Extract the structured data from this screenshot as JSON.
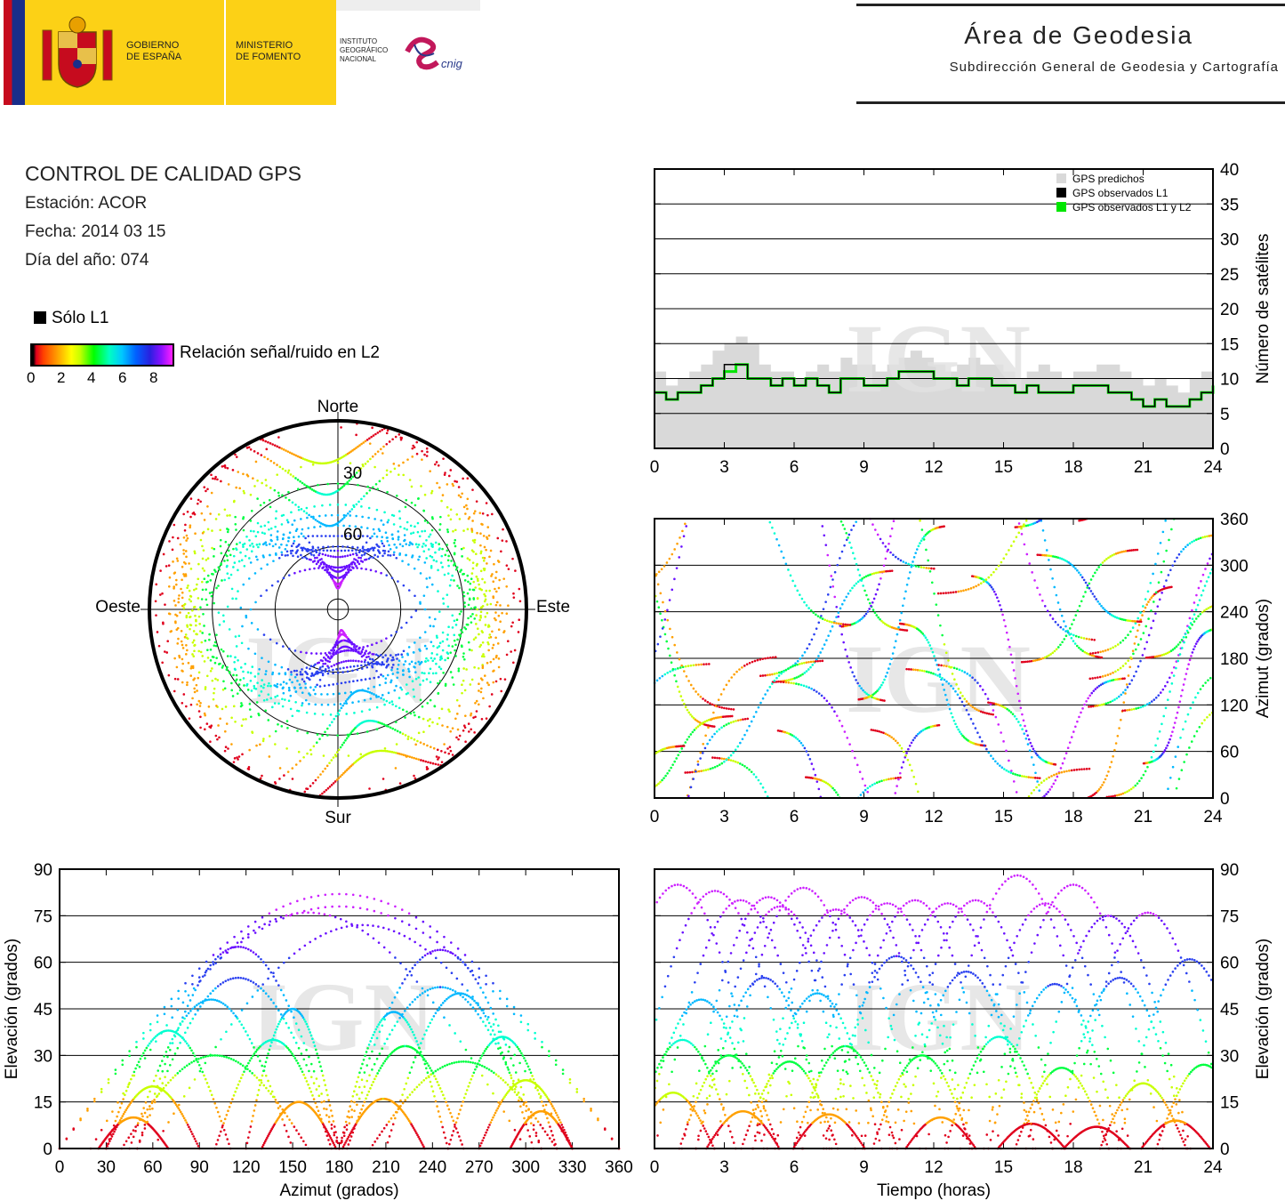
{
  "header": {
    "gov1": "GOBIERNO",
    "gov2": "DE ESPAÑA",
    "min1": "MINISTERIO",
    "min2": "DE FOMENTO",
    "ign1": "INSTITUTO",
    "ign2": "GEOGRÁFICO",
    "ign3": "NACIONAL",
    "cnig": "cnig",
    "area_title": "Área de Geodesia",
    "area_subtitle": "Subdirección General de Geodesia y Cartografía",
    "brand_yellow": "#fcd116",
    "brand_red": "#c60b1e",
    "brand_blue": "#1a2e8a",
    "cnig_color": "#c2185b"
  },
  "info": {
    "title": "CONTROL DE CALIDAD GPS",
    "station": "Estación: ACOR",
    "date": "Fecha: 2014 03 15",
    "doy": "Día del año: 074"
  },
  "legend": {
    "l1_only": "Sólo L1",
    "snr_label": "Relación señal/ruido en L2",
    "snr_ticks": [
      "0",
      "2",
      "4",
      "6",
      "8"
    ]
  },
  "watermark": "IGN",
  "chart_data": [
    {
      "id": "satellites",
      "type": "area",
      "x": [
        0,
        0.5,
        1,
        1.5,
        2,
        2.5,
        3,
        3.5,
        4,
        4.5,
        5,
        5.5,
        6,
        6.5,
        7,
        7.5,
        8,
        8.5,
        9,
        9.5,
        10,
        10.5,
        11,
        11.5,
        12,
        12.5,
        13,
        13.5,
        14,
        14.5,
        15,
        15.5,
        16,
        16.5,
        17,
        17.5,
        18,
        18.5,
        19,
        19.5,
        20,
        20.5,
        21,
        21.5,
        22,
        22.5,
        23,
        23.5,
        24
      ],
      "series": [
        {
          "name": "GPS predichos",
          "color": "#d9d9d9",
          "values": [
            11,
            9,
            10,
            11,
            12,
            14,
            15,
            16,
            15,
            12,
            11,
            11,
            10,
            11,
            12,
            11,
            13,
            12,
            12,
            11,
            12,
            13,
            14,
            13,
            12,
            11,
            12,
            13,
            12,
            12,
            11,
            10,
            11,
            12,
            11,
            10,
            11,
            11,
            12,
            12,
            11,
            10,
            9,
            10,
            9,
            8,
            10,
            11,
            12
          ]
        },
        {
          "name": "GPS observados L1",
          "color": "#000000",
          "values": [
            8,
            7,
            8,
            8,
            9,
            10,
            12,
            12,
            10,
            10,
            9,
            10,
            9,
            10,
            9,
            8,
            10,
            10,
            9,
            9,
            10,
            11,
            11,
            11,
            10,
            10,
            9,
            10,
            10,
            9,
            9,
            8,
            9,
            8,
            8,
            8,
            9,
            9,
            9,
            8,
            8,
            7,
            6,
            7,
            6,
            6,
            7,
            8,
            9
          ]
        },
        {
          "name": "GPS observados L1 y L2",
          "color": "#00e600",
          "values": [
            8,
            7,
            8,
            8,
            9,
            10,
            11,
            12,
            10,
            10,
            9,
            10,
            9,
            10,
            9,
            8,
            10,
            10,
            9,
            9,
            10,
            11,
            11,
            11,
            10,
            10,
            9,
            10,
            10,
            9,
            9,
            8,
            9,
            8,
            8,
            8,
            9,
            9,
            9,
            8,
            8,
            7,
            6,
            7,
            6,
            6,
            7,
            8,
            9
          ]
        }
      ],
      "ylabel": "Número de satélites",
      "xlim": [
        0,
        24
      ],
      "ylim": [
        0,
        40
      ],
      "xticks": [
        "0",
        "3",
        "6",
        "9",
        "12",
        "15",
        "18",
        "21",
        "24"
      ],
      "yticks": [
        "0",
        "5",
        "10",
        "15",
        "20",
        "25",
        "30",
        "35",
        "40"
      ],
      "legend": "top-right",
      "grid": "horizontal"
    },
    {
      "id": "skyplot",
      "type": "scatter",
      "projection": "polar",
      "cardinal": {
        "north": "Norte",
        "south": "Sur",
        "east": "Este",
        "west": "Oeste"
      },
      "rings": [
        "30",
        "60"
      ],
      "note": "Satellite tracks, azimuth vs elevation, coloured by L2 SNR"
    },
    {
      "id": "azimuth_time",
      "type": "scatter",
      "xlim": [
        0,
        24
      ],
      "ylim": [
        0,
        360
      ],
      "xticks": [
        "0",
        "3",
        "6",
        "9",
        "12",
        "15",
        "18",
        "21",
        "24"
      ],
      "yticks": [
        "0",
        "60",
        "120",
        "180",
        "240",
        "300",
        "360"
      ],
      "ylabel": "Azimut (grados)",
      "grid": "horizontal"
    },
    {
      "id": "elev_azimuth",
      "type": "scatter",
      "xlim": [
        0,
        360
      ],
      "ylim": [
        0,
        90
      ],
      "xticks": [
        "0",
        "30",
        "60",
        "90",
        "120",
        "150",
        "180",
        "210",
        "240",
        "270",
        "300",
        "330",
        "360"
      ],
      "yticks": [
        "0",
        "15",
        "30",
        "45",
        "60",
        "75",
        "90"
      ],
      "xlabel": "Azimut (grados)",
      "ylabel": "Elevación (grados)",
      "grid": "horizontal"
    },
    {
      "id": "elev_time",
      "type": "scatter",
      "xlim": [
        0,
        24
      ],
      "ylim": [
        0,
        90
      ],
      "xticks": [
        "0",
        "3",
        "6",
        "9",
        "12",
        "15",
        "18",
        "21",
        "24"
      ],
      "yticks": [
        "0",
        "15",
        "30",
        "45",
        "60",
        "75",
        "90"
      ],
      "xlabel": "Tiempo (horas)",
      "ylabel": "Elevación (grados)",
      "grid": "horizontal",
      "peaks": [
        {
          "t": 1.0,
          "el": 85
        },
        {
          "t": 2.6,
          "el": 83
        },
        {
          "t": 3.7,
          "el": 80
        },
        {
          "t": 4.9,
          "el": 81
        },
        {
          "t": 5.4,
          "el": 78
        },
        {
          "t": 6.4,
          "el": 84
        },
        {
          "t": 7.8,
          "el": 77
        },
        {
          "t": 8.9,
          "el": 81
        },
        {
          "t": 10.0,
          "el": 79
        },
        {
          "t": 11.2,
          "el": 80
        },
        {
          "t": 12.6,
          "el": 79
        },
        {
          "t": 13.8,
          "el": 80
        },
        {
          "t": 15.6,
          "el": 88
        },
        {
          "t": 16.8,
          "el": 79
        },
        {
          "t": 18.0,
          "el": 85
        },
        {
          "t": 19.5,
          "el": 75
        },
        {
          "t": 21.2,
          "el": 76
        },
        {
          "t": 2.0,
          "el": 48
        },
        {
          "t": 4.7,
          "el": 55
        },
        {
          "t": 7.0,
          "el": 50
        },
        {
          "t": 10.4,
          "el": 62
        },
        {
          "t": 13.4,
          "el": 57
        },
        {
          "t": 17.2,
          "el": 53
        },
        {
          "t": 20.0,
          "el": 55
        },
        {
          "t": 23.0,
          "el": 61
        },
        {
          "t": 1.2,
          "el": 35
        },
        {
          "t": 3.2,
          "el": 30
        },
        {
          "t": 5.8,
          "el": 28
        },
        {
          "t": 8.2,
          "el": 33
        },
        {
          "t": 11.5,
          "el": 30
        },
        {
          "t": 14.8,
          "el": 36
        },
        {
          "t": 17.5,
          "el": 26
        },
        {
          "t": 21.0,
          "el": 21
        },
        {
          "t": 23.6,
          "el": 27
        },
        {
          "t": 0.8,
          "el": 18
        },
        {
          "t": 3.8,
          "el": 12
        },
        {
          "t": 7.5,
          "el": 11
        },
        {
          "t": 12.3,
          "el": 10
        },
        {
          "t": 16.2,
          "el": 8
        },
        {
          "t": 19.0,
          "el": 7
        },
        {
          "t": 22.4,
          "el": 9
        }
      ]
    }
  ]
}
